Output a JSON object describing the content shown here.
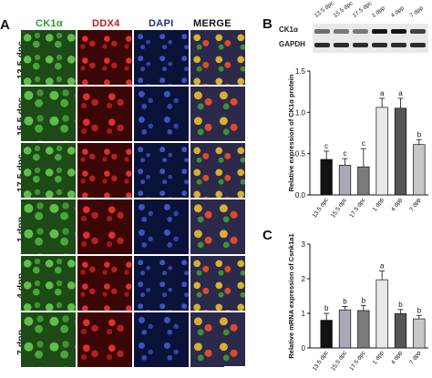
{
  "panels": {
    "A": {
      "letter": "A",
      "columns": [
        {
          "label": "CK1α",
          "color": "#2e9a2e"
        },
        {
          "label": "DDX4",
          "color": "#c9161d"
        },
        {
          "label": "DAPI",
          "color": "#20307a"
        },
        {
          "label": "MERGE",
          "color": "#111111"
        }
      ],
      "rows": [
        "13.5 dpc",
        "15.5 dpc",
        "17.5 dpc",
        "1 dpp",
        "4 dpp",
        "7 dpp"
      ]
    },
    "B": {
      "letter": "B",
      "blot_lanes": [
        "13.5 dpc",
        "15.5 dpc",
        "17.5 dpc",
        "1 dpp",
        "4 dpp",
        "7 dpp"
      ],
      "blot_bands": [
        "CK1α",
        "GAPDH"
      ]
    },
    "C": {
      "letter": "C"
    }
  },
  "chart_data": [
    {
      "type": "bar",
      "panel": "B",
      "categories": [
        "13.5 dpc",
        "15.5 dpc",
        "17.5 dpc",
        "1 dpp",
        "4 dpp",
        "7 dpp"
      ],
      "values": [
        0.43,
        0.36,
        0.34,
        1.06,
        1.05,
        0.61
      ],
      "errors": [
        0.1,
        0.08,
        0.22,
        0.11,
        0.12,
        0.06
      ],
      "letters": [
        "c",
        "c",
        "c",
        "a",
        "a",
        "b"
      ],
      "bar_colors": [
        "#111111",
        "#a9a9b8",
        "#7b7b7b",
        "#e8e8e8",
        "#555555",
        "#c7c7c7"
      ],
      "ylabel": "Relative expression of CK1α protein",
      "ylim": [
        0,
        1.5
      ],
      "yticks": [
        "0.0",
        "0.5",
        "1.0",
        "1.5"
      ]
    },
    {
      "type": "bar",
      "panel": "C",
      "categories": [
        "13.5 dpc",
        "15.5 dpc",
        "17.5 dpc",
        "1 dpp",
        "4 dpp",
        "7 dpp"
      ],
      "values": [
        0.8,
        1.1,
        1.08,
        1.97,
        0.99,
        0.84
      ],
      "errors": [
        0.2,
        0.1,
        0.15,
        0.25,
        0.12,
        0.1
      ],
      "letters": [
        "b",
        "b",
        "b",
        "a",
        "b",
        "b"
      ],
      "bar_colors": [
        "#111111",
        "#a9a9b8",
        "#7b7b7b",
        "#e8e8e8",
        "#555555",
        "#c7c7c7"
      ],
      "ylabel": "Relative mRNA expression of Csnk1a1",
      "ylim": [
        0,
        3
      ],
      "yticks": [
        "0",
        "1",
        "2",
        "3"
      ]
    }
  ]
}
